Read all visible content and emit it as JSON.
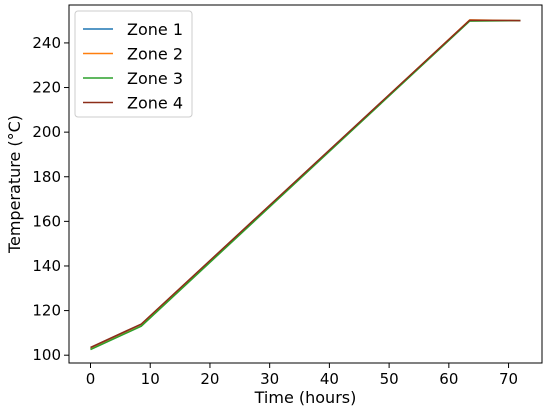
{
  "chart_data": {
    "type": "line",
    "title": "",
    "xlabel": "Time (hours)",
    "ylabel": "Temperature (°C)",
    "xlim": [
      -3.6,
      75.6
    ],
    "ylim": [
      96.5,
      257
    ],
    "xticks": [
      0,
      10,
      20,
      30,
      40,
      50,
      60,
      70
    ],
    "yticks": [
      100,
      120,
      140,
      160,
      180,
      200,
      220,
      240
    ],
    "grid": false,
    "legend_position": "top-left",
    "series": [
      {
        "name": "Zone 1",
        "color": "#1f77b4",
        "x": [
          0,
          8.5,
          63.5,
          72
        ],
        "y": [
          103,
          113.5,
          250,
          250
        ]
      },
      {
        "name": "Zone 2",
        "color": "#ff7f0e",
        "x": [
          0,
          8.5,
          63.5,
          72
        ],
        "y": [
          102.7,
          113.2,
          250.3,
          250
        ]
      },
      {
        "name": "Zone 3",
        "color": "#2ca02c",
        "x": [
          0,
          8.5,
          63.5,
          72
        ],
        "y": [
          102.5,
          113,
          249.8,
          250
        ]
      },
      {
        "name": "Zone 4",
        "color": "#8c2d19",
        "x": [
          0,
          8.5,
          63.5,
          72
        ],
        "y": [
          103.5,
          114,
          250.2,
          250
        ]
      }
    ]
  }
}
